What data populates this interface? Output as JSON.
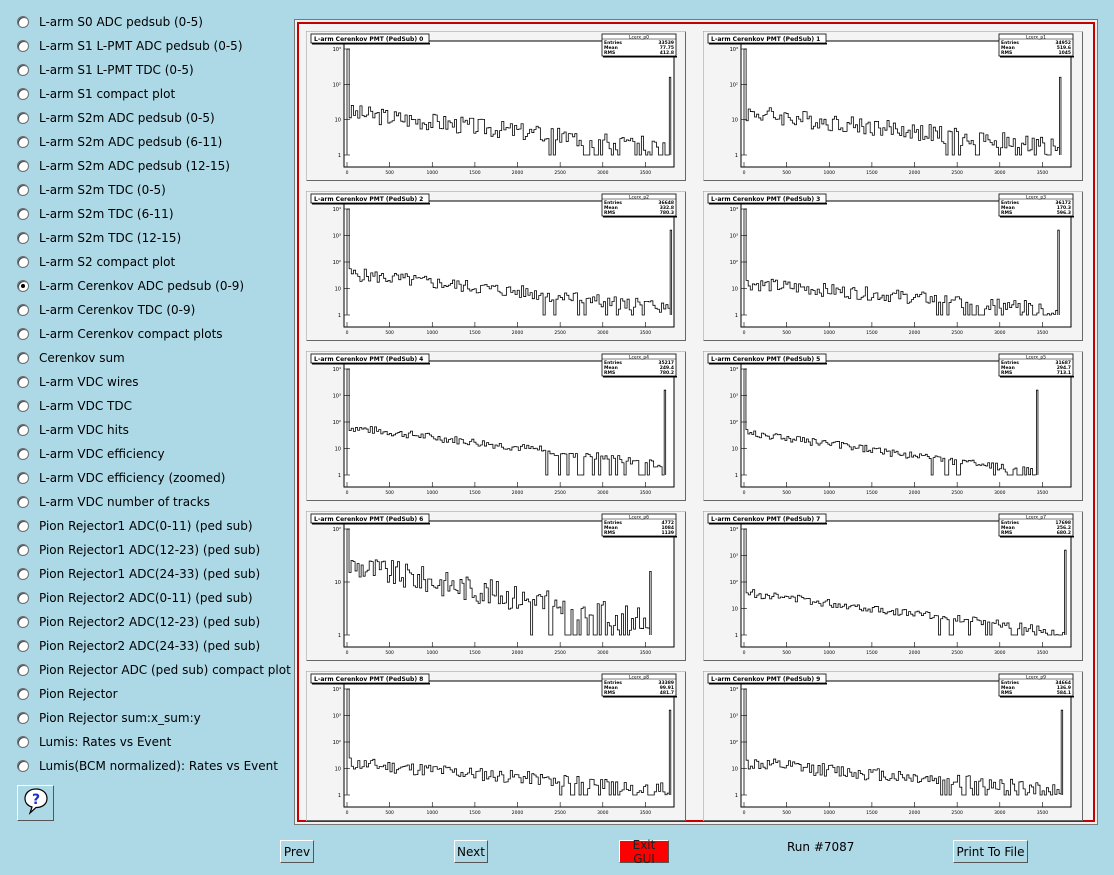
{
  "sidebar": {
    "items": [
      {
        "label": "L-arm S0 ADC pedsub (0-5)",
        "checked": false
      },
      {
        "label": "L-arm S1 L-PMT ADC pedsub (0-5)",
        "checked": false
      },
      {
        "label": "L-arm S1 L-PMT TDC (0-5)",
        "checked": false
      },
      {
        "label": "L-arm S1 compact plot",
        "checked": false
      },
      {
        "label": "L-arm S2m ADC pedsub (0-5)",
        "checked": false
      },
      {
        "label": "L-arm S2m ADC pedsub (6-11)",
        "checked": false
      },
      {
        "label": "L-arm S2m ADC pedsub (12-15)",
        "checked": false
      },
      {
        "label": "L-arm S2m TDC (0-5)",
        "checked": false
      },
      {
        "label": "L-arm S2m TDC (6-11)",
        "checked": false
      },
      {
        "label": "L-arm S2m TDC (12-15)",
        "checked": false
      },
      {
        "label": "L-arm S2 compact plot",
        "checked": false
      },
      {
        "label": "L-arm Cerenkov ADC pedsub (0-9)",
        "checked": true
      },
      {
        "label": "L-arm Cerenkov TDC (0-9)",
        "checked": false
      },
      {
        "label": "L-arm Cerenkov compact plots",
        "checked": false
      },
      {
        "label": "Cerenkov sum",
        "checked": false
      },
      {
        "label": "L-arm VDC wires",
        "checked": false
      },
      {
        "label": "L-arm VDC TDC",
        "checked": false
      },
      {
        "label": "L-arm VDC hits",
        "checked": false
      },
      {
        "label": "L-arm VDC efficiency",
        "checked": false
      },
      {
        "label": "L-arm VDC efficiency (zoomed)",
        "checked": false
      },
      {
        "label": "L-arm VDC number of tracks",
        "checked": false
      },
      {
        "label": "Pion Rejector1 ADC(0-11) (ped sub)",
        "checked": false
      },
      {
        "label": "Pion Rejector1 ADC(12-23) (ped sub)",
        "checked": false
      },
      {
        "label": "Pion Rejector1 ADC(24-33) (ped sub)",
        "checked": false
      },
      {
        "label": "Pion Rejector2 ADC(0-11) (ped sub)",
        "checked": false
      },
      {
        "label": "Pion Rejector2 ADC(12-23) (ped sub)",
        "checked": false
      },
      {
        "label": "Pion Rejector2 ADC(24-33) (ped sub)",
        "checked": false
      },
      {
        "label": "Pion Rejector ADC (ped sub) compact plot",
        "checked": false
      },
      {
        "label": "Pion Rejector",
        "checked": false
      },
      {
        "label": "Pion Rejector sum:x_sum:y",
        "checked": false
      },
      {
        "label": "Lumis: Rates vs Event",
        "checked": false
      },
      {
        "label": "Lumis(BCM normalized): Rates vs Event",
        "checked": false
      }
    ],
    "help_icon": "question-mark-icon"
  },
  "buttons": {
    "prev": "Prev",
    "next": "Next",
    "exit": "Exit GUI",
    "print": "Print To File",
    "exit_color": "#ff0000"
  },
  "run_label": "Run #7087",
  "x_ticks": [
    "0",
    "500",
    "1000",
    "1500",
    "2000",
    "2500",
    "3000",
    "3500"
  ],
  "chart_data": [
    {
      "type": "bar",
      "title": "L-arm Cerenkov PMT (PedSub) 0",
      "stats_name": "Lcerx_p0",
      "stats": {
        "Entries": "33539",
        "Mean": "77.75",
        "RMS": "412.8"
      },
      "y_ticks": [
        "1",
        "10",
        "10²",
        "10³"
      ],
      "xlim": [
        0,
        3800
      ],
      "log_y": true,
      "peak_x": 3780
    },
    {
      "type": "bar",
      "title": "L-arm Cerenkov PMT (PedSub) 1",
      "stats_name": "Lcerx_p1",
      "stats": {
        "Entries": "34952",
        "Mean": "519.6",
        "RMS": "1045"
      },
      "y_ticks": [
        "1",
        "10",
        "10²",
        "10³"
      ],
      "xlim": [
        0,
        3800
      ],
      "log_y": true,
      "peak_x": 3700
    },
    {
      "type": "bar",
      "title": "L-arm Cerenkov PMT (PedSub) 2",
      "stats_name": "Lcerx_p2",
      "stats": {
        "Entries": "36648",
        "Mean": "332.8",
        "RMS": "780.3"
      },
      "y_ticks": [
        "1",
        "10",
        "10²",
        "10³",
        "10⁴"
      ],
      "xlim": [
        0,
        3800
      ],
      "log_y": true,
      "peak_x": 3790
    },
    {
      "type": "bar",
      "title": "L-arm Cerenkov PMT (PedSub) 3",
      "stats_name": "Lcerx_p3",
      "stats": {
        "Entries": "36172",
        "Mean": "170.3",
        "RMS": "596.3"
      },
      "y_ticks": [
        "1",
        "10",
        "10²",
        "10³",
        "10⁴"
      ],
      "xlim": [
        0,
        3800
      ],
      "log_y": true,
      "peak_x": 3680
    },
    {
      "type": "bar",
      "title": "L-arm Cerenkov PMT (PedSub) 4",
      "stats_name": "Lcerx_p4",
      "stats": {
        "Entries": "35217",
        "Mean": "249.4",
        "RMS": "780.2"
      },
      "y_ticks": [
        "1",
        "10",
        "10²",
        "10³",
        "10⁴"
      ],
      "xlim": [
        0,
        3800
      ],
      "log_y": true,
      "peak_x": 3720
    },
    {
      "type": "bar",
      "title": "L-arm Cerenkov PMT (PedSub) 5",
      "stats_name": "Lcerx_p5",
      "stats": {
        "Entries": "31687",
        "Mean": "294.7",
        "RMS": "713.1"
      },
      "y_ticks": [
        "1",
        "10",
        "10²",
        "10³",
        "10⁴"
      ],
      "xlim": [
        0,
        3800
      ],
      "log_y": true,
      "peak_x": 3430
    },
    {
      "type": "bar",
      "title": "L-arm Cerenkov PMT (PedSub) 6",
      "stats_name": "Lcerx_p6",
      "stats": {
        "Entries": "4772",
        "Mean": "1084",
        "RMS": "1139"
      },
      "y_ticks": [
        "1",
        "10",
        "10²"
      ],
      "xlim": [
        0,
        3800
      ],
      "log_y": true,
      "peak_x": 3550
    },
    {
      "type": "bar",
      "title": "L-arm Cerenkov PMT (PedSub) 7",
      "stats_name": "Lcerx_p7",
      "stats": {
        "Entries": "17698",
        "Mean": "256.2",
        "RMS": "680.2"
      },
      "y_ticks": [
        "1",
        "10",
        "10²",
        "10³",
        "10⁴"
      ],
      "xlim": [
        0,
        3800
      ],
      "log_y": true,
      "peak_x": 3760
    },
    {
      "type": "bar",
      "title": "L-arm Cerenkov PMT (PedSub) 8",
      "stats_name": "Lcerx_p8",
      "stats": {
        "Entries": "33389",
        "Mean": "99.91",
        "RMS": "481.7"
      },
      "y_ticks": [
        "1",
        "10",
        "10²",
        "10³",
        "10⁴"
      ],
      "xlim": [
        0,
        3800
      ],
      "log_y": true,
      "peak_x": 3780
    },
    {
      "type": "bar",
      "title": "L-arm Cerenkov PMT (PedSub) 9",
      "stats_name": "Lcerx_p9",
      "stats": {
        "Entries": "34664",
        "Mean": "136.9",
        "RMS": "584.1"
      },
      "y_ticks": [
        "1",
        "10",
        "10²",
        "10³",
        "10⁴"
      ],
      "xlim": [
        0,
        3800
      ],
      "log_y": true,
      "peak_x": 3720
    }
  ]
}
